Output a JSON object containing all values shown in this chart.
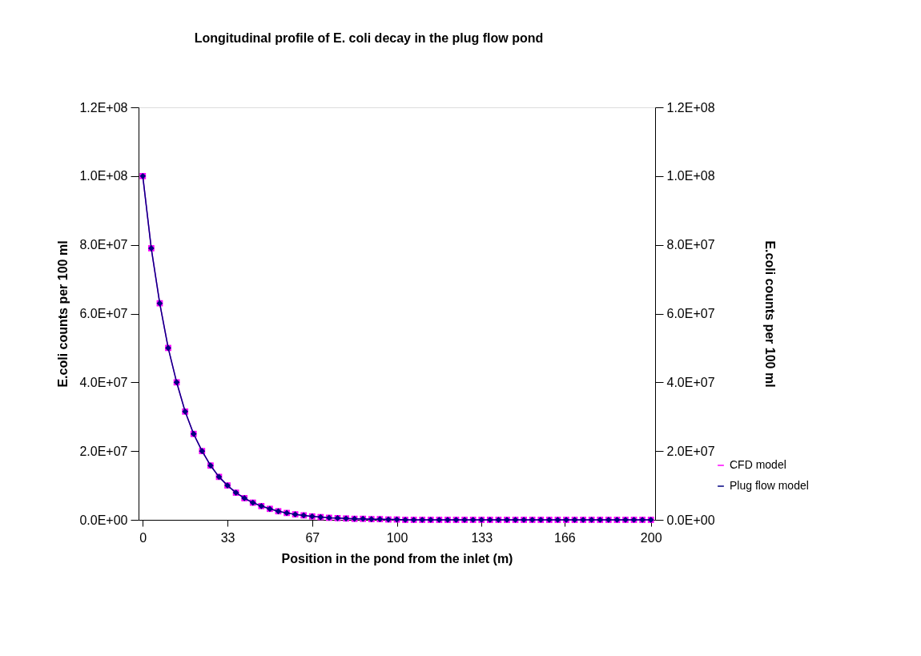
{
  "chart_data": {
    "type": "line",
    "title": "Longitudinal profile of E. coli decay in the plug flow pond",
    "xlabel": "Position in the pond from the inlet (m)",
    "ylabel": "E.coli counts per 100 ml",
    "y2label": "E.coli counts per 100 ml",
    "x": [
      0,
      3.33,
      6.67,
      10,
      13.33,
      16.67,
      20,
      23.33,
      26.67,
      30,
      33.33,
      36.67,
      40,
      43.33,
      46.67,
      50,
      53.33,
      56.67,
      60,
      63.33,
      66.67,
      70,
      73.33,
      76.67,
      80,
      83.33,
      86.67,
      90,
      93.33,
      96.67,
      100,
      103.33,
      106.67,
      110,
      113.33,
      116.67,
      120,
      123.33,
      126.67,
      130,
      133.33,
      136.67,
      140,
      143.33,
      146.67,
      150,
      153.33,
      156.67,
      160,
      163.33,
      166.67,
      170,
      173.33,
      176.67,
      180,
      183.33,
      186.67,
      190,
      193.33,
      196.67,
      200
    ],
    "series": [
      {
        "name": "CFD model",
        "color": "#ff00ff",
        "marker": "square",
        "values": [
          100000000,
          79000000,
          63000000,
          50000000,
          40000000,
          31500000,
          25000000,
          20000000,
          15800000,
          12500000,
          10000000,
          7900000,
          6300000,
          5000000,
          4000000,
          3200000,
          2500000,
          2000000,
          1600000,
          1300000,
          1000000,
          800000,
          600000,
          500000,
          400000,
          300000,
          300000,
          200000,
          200000,
          100000,
          100000,
          0,
          0,
          0,
          0,
          0,
          0,
          0,
          0,
          0,
          0,
          0,
          0,
          0,
          0,
          0,
          0,
          0,
          0,
          0,
          0,
          0,
          0,
          0,
          0,
          0,
          0,
          0,
          0,
          0,
          0
        ]
      },
      {
        "name": "Plug flow model",
        "color": "#000080",
        "marker": "diamond",
        "axis": "y2",
        "values": [
          100000000,
          79000000,
          63000000,
          50000000,
          40000000,
          31500000,
          25000000,
          20000000,
          15800000,
          12500000,
          10000000,
          7900000,
          6300000,
          5000000,
          4000000,
          3200000,
          2500000,
          2000000,
          1600000,
          1300000,
          1000000,
          800000,
          600000,
          500000,
          400000,
          300000,
          300000,
          200000,
          200000,
          100000,
          100000,
          0,
          0,
          0,
          0,
          0,
          0,
          0,
          0,
          0,
          0,
          0,
          0,
          0,
          0,
          0,
          0,
          0,
          0,
          0,
          0,
          0,
          0,
          0,
          0,
          0,
          0,
          0,
          0,
          0,
          0
        ]
      }
    ],
    "xlim": [
      -1.67,
      201.67
    ],
    "xticks": [
      0,
      {
        "value": 33.33,
        "label": "33"
      },
      {
        "value": 66.67,
        "label": "67"
      },
      100,
      {
        "value": 133.33,
        "label": "133"
      },
      166,
      200
    ],
    "ylim": [
      0,
      120000000
    ],
    "yticks": [
      {
        "value": 0,
        "label": "0.0E+00"
      },
      {
        "value": 20000000,
        "label": "2.0E+07"
      },
      {
        "value": 40000000,
        "label": "4.0E+07"
      },
      {
        "value": 60000000,
        "label": "6.0E+07"
      },
      {
        "value": 80000000,
        "label": "8.0E+07"
      },
      {
        "value": 100000000,
        "label": "1.0E+08"
      },
      {
        "value": 120000000,
        "label": "1.2E+08"
      }
    ],
    "y2lim": [
      0,
      120000000
    ],
    "y2ticks": [
      {
        "value": 0,
        "label": "0.0E+00"
      },
      {
        "value": 20000000,
        "label": "2.0E+07"
      },
      {
        "value": 40000000,
        "label": "4.0E+07"
      },
      {
        "value": 60000000,
        "label": "6.0E+07"
      },
      {
        "value": 80000000,
        "label": "8.0E+07"
      },
      {
        "value": 100000000,
        "label": "1.0E+08"
      },
      {
        "value": 120000000,
        "label": "1.2E+08"
      }
    ],
    "grid": false,
    "legend": "bottom right",
    "line_style": "solid"
  }
}
